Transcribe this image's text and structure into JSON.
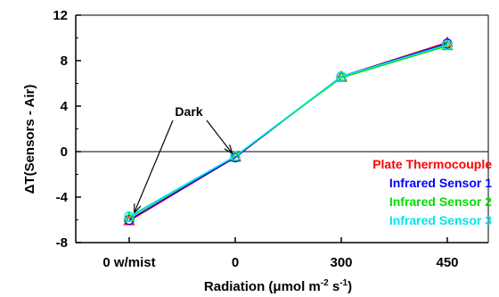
{
  "chart_data": {
    "type": "line",
    "categories": [
      "0 w/mist",
      "0",
      "300",
      "450"
    ],
    "ylabel": "ΔT(Sensors - Air)",
    "xlabel_parts": {
      "main": "Radiation (μmol m",
      "sup1": "-2",
      "mid": " s",
      "sup2": "-1",
      "end": ")"
    },
    "ylim": [
      -8,
      12
    ],
    "yticks": [
      -8,
      -4,
      0,
      4,
      8,
      12
    ],
    "yticklabels": [
      "-8",
      "-4",
      "0",
      "4",
      "8",
      "12"
    ],
    "grid": false,
    "zero_line": true,
    "legend_position": "bottom-right",
    "series": [
      {
        "name": "Plate Thermocouple",
        "color": "#ff0000",
        "marker": "triangle",
        "values": [
          -6.1,
          -0.5,
          6.6,
          9.6
        ]
      },
      {
        "name": "Infrared Sensor 1",
        "color": "#0000ff",
        "marker": "circle",
        "values": [
          -6.0,
          -0.5,
          6.6,
          9.5
        ]
      },
      {
        "name": "Infrared Sensor 2",
        "color": "#00dd00",
        "marker": "triangle",
        "values": [
          -5.8,
          -0.4,
          6.5,
          9.3
        ]
      },
      {
        "name": "Infrared Sensor 3",
        "color": "#00e5ee",
        "marker": "circle",
        "values": [
          -5.7,
          -0.4,
          6.6,
          9.4
        ]
      }
    ],
    "annotation": {
      "text": "Dark",
      "points_to": [
        0,
        1
      ]
    }
  }
}
